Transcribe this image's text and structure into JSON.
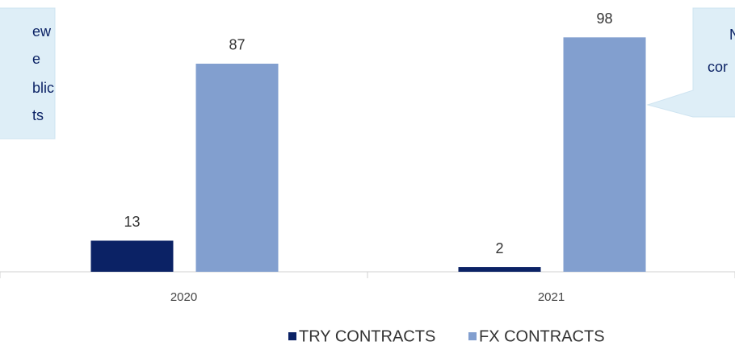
{
  "chart_data": {
    "type": "bar",
    "categories": [
      "2020",
      "2021"
    ],
    "series": [
      {
        "name": "TRY CONTRACTS",
        "color": "#0b2265",
        "values": [
          13,
          2
        ]
      },
      {
        "name": "FX CONTRACTS",
        "color": "#829fcf",
        "values": [
          87,
          98
        ]
      }
    ],
    "ylim": [
      0,
      100
    ],
    "legend": "bottom",
    "annotations": [
      {
        "lines": [
          "ew",
          "e",
          "blic",
          "ts"
        ]
      },
      {
        "lines": [
          "N",
          "cor"
        ]
      }
    ]
  }
}
